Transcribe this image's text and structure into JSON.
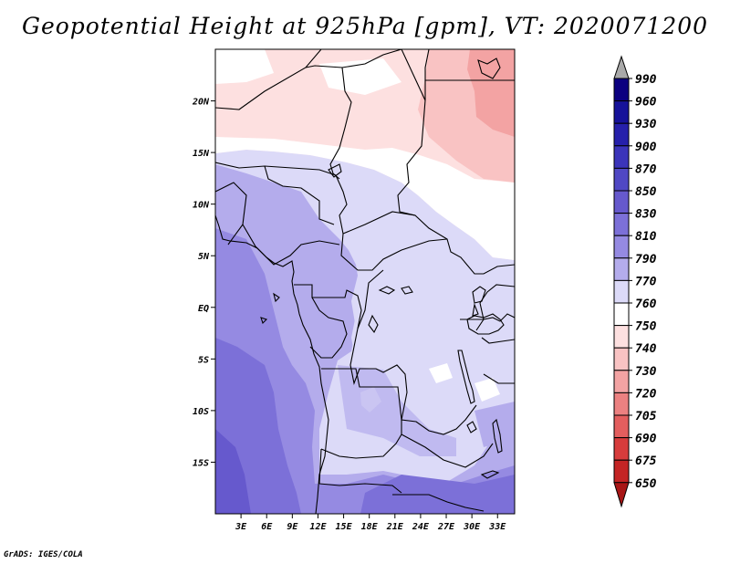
{
  "title": "Geopotential Height at 925hPa [gpm], VT: 2020071200",
  "credit": "GrADS: IGES/COLA",
  "map": {
    "lat_labels": [
      "20N",
      "15N",
      "10N",
      "5N",
      "EQ",
      "5S",
      "10S",
      "15S"
    ],
    "lat_values": [
      20,
      15,
      10,
      5,
      0,
      -5,
      -10,
      -15
    ],
    "lon_labels": [
      "3E",
      "6E",
      "9E",
      "12E",
      "15E",
      "18E",
      "21E",
      "24E",
      "27E",
      "30E",
      "33E"
    ],
    "lon_values": [
      3,
      6,
      9,
      12,
      15,
      18,
      21,
      24,
      27,
      30,
      33
    ],
    "lon_range": [
      0,
      35
    ],
    "lat_range": [
      -20,
      25
    ]
  },
  "colorbar": {
    "labels": [
      "990",
      "960",
      "930",
      "900",
      "870",
      "850",
      "830",
      "810",
      "790",
      "770",
      "760",
      "750",
      "740",
      "730",
      "720",
      "705",
      "690",
      "675",
      "650"
    ],
    "colors": [
      "#0c0080",
      "#16129a",
      "#2620ab",
      "#3b34ba",
      "#5048c4",
      "#6659cd",
      "#7c70d8",
      "#958ae2",
      "#b4acec",
      "#dcdaf8",
      "#ffffff",
      "#fde0e0",
      "#f9c3c3",
      "#f3a3a3",
      "#ec8181",
      "#e35e5e",
      "#d73c3c",
      "#c42525",
      "#a81616"
    ]
  }
}
